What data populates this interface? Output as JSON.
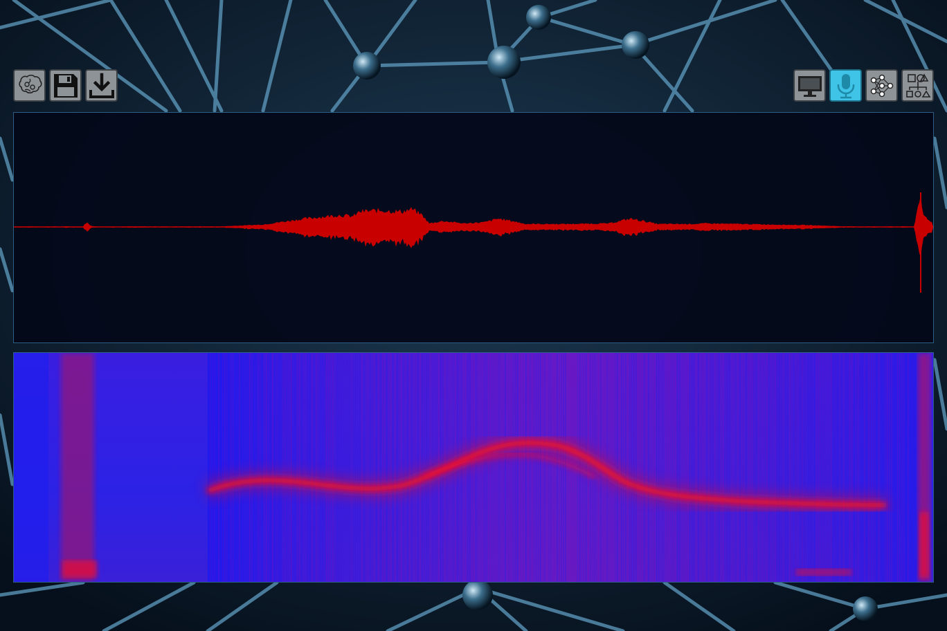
{
  "toolbar_left": {
    "buttons": [
      {
        "icon": "brain-icon"
      },
      {
        "icon": "floppy-disk-icon"
      },
      {
        "icon": "download-icon"
      }
    ]
  },
  "toolbar_right": {
    "buttons": [
      {
        "icon": "monitor-icon",
        "active": false
      },
      {
        "icon": "microphone-icon",
        "active": true
      },
      {
        "icon": "neural-network-icon",
        "active": false
      },
      {
        "icon": "shapes-icon",
        "active": false
      }
    ]
  },
  "panels": {
    "waveform": {
      "signal_color": "#c80000",
      "background": "#04081a"
    },
    "spectrogram": {
      "low_color": "#2020e0",
      "high_color": "#e00010"
    }
  },
  "colors": {
    "button_bg": "#8e9398",
    "button_active_bg": "#3fc3e6",
    "panel_border": "#2d5f86"
  }
}
